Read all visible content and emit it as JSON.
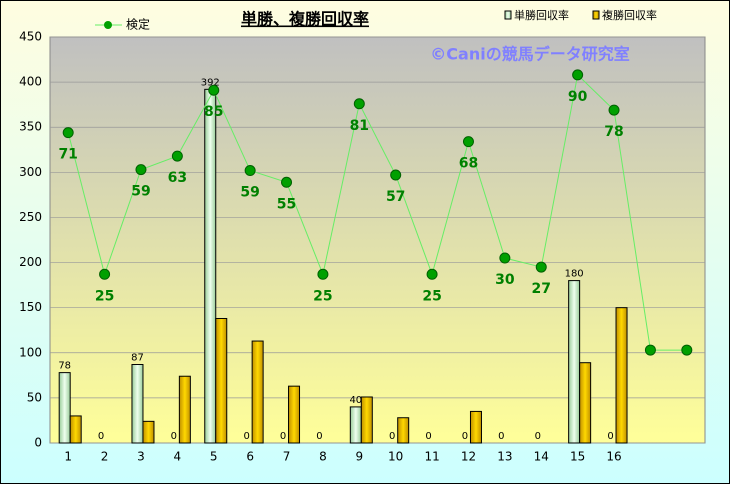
{
  "chart_data": {
    "type": "bar",
    "title": "単勝、複勝回収率",
    "watermark": "©Caniの競馬データ研究室",
    "categories": [
      "1",
      "2",
      "3",
      "4",
      "5",
      "6",
      "7",
      "8",
      "9",
      "10",
      "11",
      "12",
      "13",
      "14",
      "15",
      "16",
      null,
      null
    ],
    "series": [
      {
        "name": "単勝回収率",
        "color": "#c8f0c8",
        "values": [
          78,
          0,
          87,
          0,
          392,
          0,
          0,
          0,
          40,
          0,
          0,
          0,
          0,
          0,
          180,
          0,
          null,
          null
        ]
      },
      {
        "name": "複勝回収率",
        "color": "#f0c000",
        "values": [
          30,
          0,
          24,
          74,
          138,
          113,
          63,
          0,
          51,
          28,
          0,
          35,
          0,
          0,
          89,
          150,
          null,
          null
        ]
      },
      {
        "name": "検定",
        "type": "line",
        "color": "#00a000",
        "values": [
          344,
          187,
          303,
          318,
          391,
          302,
          289,
          187,
          376,
          297,
          187,
          334,
          205,
          195,
          408,
          369,
          103,
          103
        ],
        "point_labels": [
          71,
          25,
          59,
          63,
          85,
          59,
          55,
          25,
          81,
          57,
          25,
          68,
          30,
          27,
          90,
          78,
          null,
          null
        ]
      }
    ],
    "ylim": [
      0,
      450
    ],
    "yticks": [
      0,
      50,
      100,
      150,
      200,
      250,
      300,
      350,
      400,
      450
    ],
    "grid": true
  }
}
